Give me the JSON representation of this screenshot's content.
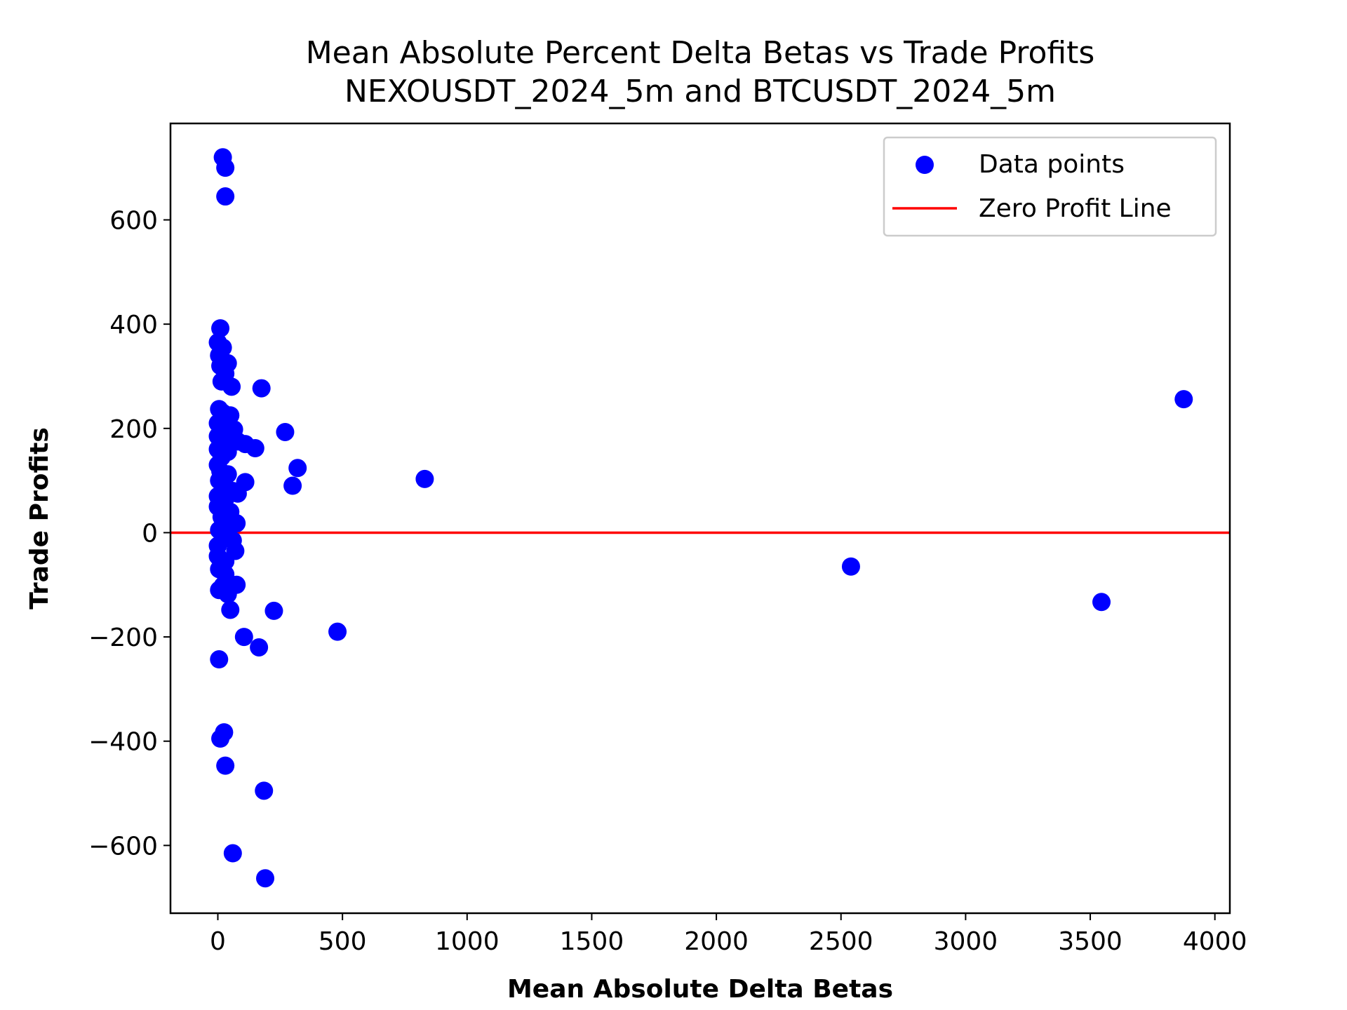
{
  "chart_data": {
    "type": "scatter",
    "title": "Mean Absolute Percent Delta Betas vs Trade Profits",
    "subtitle": "NEXOUSDT_2024_5m and BTCUSDT_2024_5m",
    "xlabel": "Mean Absolute Delta Betas",
    "ylabel": "Trade Profits",
    "xlim": [
      -190,
      4060
    ],
    "ylim": [
      -730,
      785
    ],
    "xticks": [
      0,
      500,
      1000,
      1500,
      2000,
      2500,
      3000,
      3500,
      4000
    ],
    "xtick_labels": [
      "0",
      "500",
      "1000",
      "1500",
      "2000",
      "2500",
      "3000",
      "3500",
      "4000"
    ],
    "yticks": [
      -600,
      -400,
      -200,
      0,
      200,
      400,
      600
    ],
    "ytick_labels": [
      "−600",
      "−400",
      "−200",
      "0",
      "200",
      "400",
      "600"
    ],
    "grid": false,
    "legend": {
      "placement": "upper right",
      "entries": [
        {
          "label": "Data points",
          "kind": "marker",
          "color": "#0000ff"
        },
        {
          "label": "Zero Profit Line",
          "kind": "line",
          "color": "#ff0000"
        }
      ]
    },
    "reference_lines": [
      {
        "name": "Zero Profit Line",
        "orientation": "horizontal",
        "y": 0,
        "color": "#ff0000"
      }
    ],
    "series": [
      {
        "name": "Data points",
        "color": "#0000ff",
        "points": [
          {
            "x": 20,
            "y": 720
          },
          {
            "x": 30,
            "y": 700
          },
          {
            "x": 30,
            "y": 645
          },
          {
            "x": 10,
            "y": 392
          },
          {
            "x": 0,
            "y": 365
          },
          {
            "x": 20,
            "y": 355
          },
          {
            "x": 5,
            "y": 340
          },
          {
            "x": 40,
            "y": 325
          },
          {
            "x": 10,
            "y": 320
          },
          {
            "x": 30,
            "y": 305
          },
          {
            "x": 15,
            "y": 290
          },
          {
            "x": 55,
            "y": 280
          },
          {
            "x": 175,
            "y": 277
          },
          {
            "x": 5,
            "y": 237
          },
          {
            "x": 20,
            "y": 230
          },
          {
            "x": 50,
            "y": 225
          },
          {
            "x": 0,
            "y": 210
          },
          {
            "x": 30,
            "y": 205
          },
          {
            "x": 65,
            "y": 198
          },
          {
            "x": 270,
            "y": 193
          },
          {
            "x": 0,
            "y": 185
          },
          {
            "x": 20,
            "y": 180
          },
          {
            "x": 80,
            "y": 175
          },
          {
            "x": 110,
            "y": 170
          },
          {
            "x": 150,
            "y": 162
          },
          {
            "x": 0,
            "y": 160
          },
          {
            "x": 40,
            "y": 155
          },
          {
            "x": 15,
            "y": 145
          },
          {
            "x": 0,
            "y": 130
          },
          {
            "x": 320,
            "y": 124
          },
          {
            "x": 10,
            "y": 118
          },
          {
            "x": 40,
            "y": 112
          },
          {
            "x": 830,
            "y": 103
          },
          {
            "x": 5,
            "y": 100
          },
          {
            "x": 110,
            "y": 97
          },
          {
            "x": 300,
            "y": 90
          },
          {
            "x": 20,
            "y": 88
          },
          {
            "x": 60,
            "y": 80
          },
          {
            "x": 80,
            "y": 75
          },
          {
            "x": 0,
            "y": 70
          },
          {
            "x": 30,
            "y": 65
          },
          {
            "x": 0,
            "y": 50
          },
          {
            "x": 50,
            "y": 40
          },
          {
            "x": 15,
            "y": 30
          },
          {
            "x": 75,
            "y": 18
          },
          {
            "x": 40,
            "y": 10
          },
          {
            "x": 5,
            "y": 5
          },
          {
            "x": 25,
            "y": -5
          },
          {
            "x": 60,
            "y": -15
          },
          {
            "x": 0,
            "y": -25
          },
          {
            "x": 70,
            "y": -35
          },
          {
            "x": 0,
            "y": -45
          },
          {
            "x": 30,
            "y": -55
          },
          {
            "x": 5,
            "y": -70
          },
          {
            "x": 30,
            "y": -80
          },
          {
            "x": 75,
            "y": -100
          },
          {
            "x": 20,
            "y": -102
          },
          {
            "x": 5,
            "y": -110
          },
          {
            "x": 40,
            "y": -118
          },
          {
            "x": 50,
            "y": -148
          },
          {
            "x": 225,
            "y": -150
          },
          {
            "x": 480,
            "y": -190
          },
          {
            "x": 105,
            "y": -200
          },
          {
            "x": 165,
            "y": -220
          },
          {
            "x": 5,
            "y": -243
          },
          {
            "x": 2540,
            "y": -65
          },
          {
            "x": 3545,
            "y": -133
          },
          {
            "x": 3875,
            "y": 256
          },
          {
            "x": 25,
            "y": -383
          },
          {
            "x": 10,
            "y": -395
          },
          {
            "x": 30,
            "y": -447
          },
          {
            "x": 185,
            "y": -495
          },
          {
            "x": 60,
            "y": -615
          },
          {
            "x": 190,
            "y": -663
          }
        ]
      }
    ]
  }
}
